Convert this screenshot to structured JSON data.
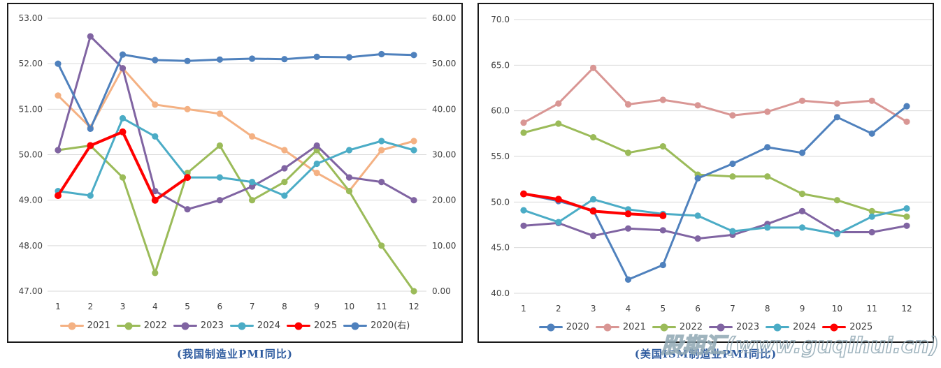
{
  "page": {
    "background": "#ffffff",
    "axis_text_color": "#404040",
    "gridline_color": "#d9d9d9",
    "caption_color": "#2e5b9f"
  },
  "watermark": {
    "text": "股期汇(www.guqihui.cn)",
    "color": "#8fa7b3"
  },
  "chart_data": [
    {
      "type": "line",
      "name": "china-manufacturing-pmi",
      "caption": "(我国制造业PMI同比)",
      "x": [
        "1",
        "2",
        "3",
        "4",
        "5",
        "6",
        "7",
        "8",
        "9",
        "10",
        "11",
        "12"
      ],
      "grid": true,
      "legend_position": "bottom",
      "y_axis": {
        "min": 47,
        "max": 53,
        "tick_values": [
          53,
          52,
          51,
          50,
          49,
          48,
          47
        ],
        "tick_labels": [
          "53.00",
          "52.00",
          "51.00",
          "50.00",
          "49.00",
          "48.00",
          "47.00"
        ]
      },
      "y2_axis": {
        "min": 0,
        "max": 60,
        "tick_values": [
          60,
          50,
          40,
          30,
          20,
          10,
          0
        ],
        "tick_labels": [
          "60.00",
          "50.00",
          "40.00",
          "30.00",
          "20.00",
          "10.00",
          "0.00"
        ]
      },
      "draw_order": [
        0,
        1,
        2,
        3,
        5,
        4
      ],
      "series": [
        {
          "name": "2021",
          "color": "#f4b183",
          "axis": "left",
          "values": [
            51.3,
            50.6,
            51.9,
            51.1,
            51.0,
            50.9,
            50.4,
            50.1,
            49.6,
            49.2,
            50.1,
            50.3
          ]
        },
        {
          "name": "2022",
          "color": "#9bbb59",
          "axis": "left",
          "values": [
            50.1,
            50.2,
            49.5,
            47.4,
            49.6,
            50.2,
            49.0,
            49.4,
            50.1,
            49.2,
            48.0,
            47.0
          ]
        },
        {
          "name": "2023",
          "color": "#8064a2",
          "axis": "left",
          "values": [
            50.1,
            52.6,
            51.9,
            49.2,
            48.8,
            49.0,
            49.3,
            49.7,
            50.2,
            49.5,
            49.4,
            49.0
          ]
        },
        {
          "name": "2024",
          "color": "#4bacc6",
          "axis": "left",
          "values": [
            49.2,
            49.1,
            50.8,
            50.4,
            49.5,
            49.5,
            49.4,
            49.1,
            49.8,
            50.1,
            50.3,
            50.1
          ]
        },
        {
          "name": "2025",
          "color": "#ff0000",
          "axis": "left",
          "emphasis": true,
          "values": [
            49.1,
            50.2,
            50.5,
            49.0,
            49.5
          ]
        },
        {
          "name": "2020(右)",
          "color": "#4f81bd",
          "axis": "right",
          "values": [
            50.0,
            35.7,
            52.0,
            50.8,
            50.6,
            50.9,
            51.1,
            51.0,
            51.5,
            51.4,
            52.1,
            51.9
          ]
        }
      ]
    },
    {
      "type": "line",
      "name": "us-ism-manufacturing-pmi",
      "caption": "(美国ISM制造业PMI同比)",
      "x": [
        "1",
        "2",
        "3",
        "4",
        "5",
        "6",
        "7",
        "8",
        "9",
        "10",
        "11",
        "12"
      ],
      "grid": true,
      "legend_position": "bottom",
      "y_axis": {
        "min": 40,
        "max": 70,
        "tick_values": [
          70,
          65,
          60,
          55,
          50,
          45,
          40
        ],
        "tick_labels": [
          "70.0",
          "65.0",
          "60.0",
          "55.0",
          "50.0",
          "45.0",
          "40.0"
        ]
      },
      "draw_order": [
        1,
        2,
        3,
        4,
        0,
        5
      ],
      "series": [
        {
          "name": "2020",
          "color": "#4f81bd",
          "axis": "left",
          "values": [
            50.9,
            50.1,
            49.1,
            41.5,
            43.1,
            52.6,
            54.2,
            56.0,
            55.4,
            59.3,
            57.5,
            60.5
          ]
        },
        {
          "name": "2021",
          "color": "#d99694",
          "axis": "left",
          "values": [
            58.7,
            60.8,
            64.7,
            60.7,
            61.2,
            60.6,
            59.5,
            59.9,
            61.1,
            60.8,
            61.1,
            58.8
          ]
        },
        {
          "name": "2022",
          "color": "#9bbb59",
          "axis": "left",
          "values": [
            57.6,
            58.6,
            57.1,
            55.4,
            56.1,
            53.0,
            52.8,
            52.8,
            50.9,
            50.2,
            49.0,
            48.4
          ]
        },
        {
          "name": "2023",
          "color": "#8064a2",
          "axis": "left",
          "values": [
            47.4,
            47.7,
            46.3,
            47.1,
            46.9,
            46.0,
            46.4,
            47.6,
            49.0,
            46.7,
            46.7,
            47.4
          ]
        },
        {
          "name": "2024",
          "color": "#4bacc6",
          "axis": "left",
          "values": [
            49.1,
            47.8,
            50.3,
            49.2,
            48.7,
            48.5,
            46.8,
            47.2,
            47.2,
            46.5,
            48.4,
            49.3
          ]
        },
        {
          "name": "2025",
          "color": "#ff0000",
          "axis": "left",
          "emphasis": true,
          "values": [
            50.9,
            50.3,
            49.0,
            48.7,
            48.5
          ]
        }
      ]
    }
  ]
}
